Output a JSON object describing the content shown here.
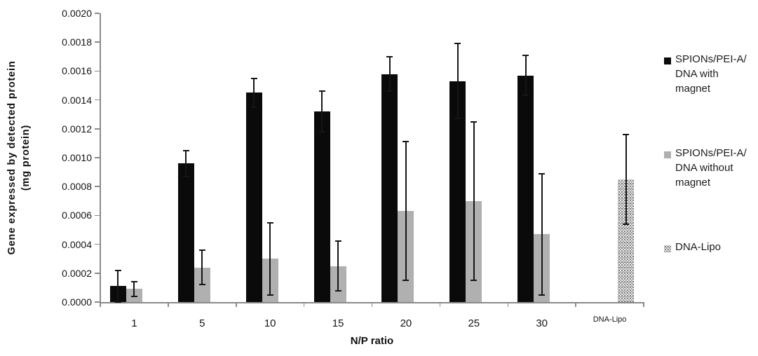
{
  "figure": {
    "y_axis_title_line1": "Gene expressed by detected protein",
    "y_axis_title_line2": "(mg protein)",
    "x_axis_title": "N/P ratio"
  },
  "colors": {
    "black_bar": "#0a0a0a",
    "gray_bar": "#b0b0b0",
    "pattern_gray": "#8f8f8f",
    "axis": "#8a8a8a",
    "error_bar": "#161616",
    "text": "#1a1a1a"
  },
  "legend": {
    "items": [
      {
        "swatch": "black",
        "lines": [
          "SPIONs/PEI-A/",
          "DNA with",
          "magnet"
        ]
      },
      {
        "swatch": "gray",
        "lines": [
          "SPIONs/PEI-A/",
          "DNA without",
          "magnet"
        ]
      },
      {
        "swatch": "pattern",
        "lines": [
          "DNA-Lipo"
        ]
      }
    ]
  },
  "chart_data": {
    "type": "bar",
    "title": "",
    "xlabel": "N/P ratio",
    "ylabel": "Gene expressed by detected protein (mg protein)",
    "categories": [
      "1",
      "5",
      "10",
      "15",
      "20",
      "25",
      "30",
      "DNA-Lipo"
    ],
    "series": [
      {
        "name": "SPIONs/PEI-A/DNA with magnet",
        "style": "solid-black",
        "values": [
          0.00011,
          0.00096,
          0.00145,
          0.00132,
          0.00158,
          0.00153,
          0.00157,
          null
        ],
        "errors": [
          0.00011,
          9e-05,
          0.0001,
          0.00014,
          0.00012,
          0.00026,
          0.00014,
          null
        ]
      },
      {
        "name": "SPIONs/PEI-A/DNA without magnet",
        "style": "solid-gray",
        "values": [
          9e-05,
          0.00024,
          0.0003,
          0.00025,
          0.00063,
          0.0007,
          0.00047,
          null
        ],
        "errors": [
          5e-05,
          0.00012,
          0.00025,
          0.00017,
          0.00048,
          0.00055,
          0.00042,
          null
        ]
      },
      {
        "name": "DNA-Lipo",
        "style": "pattern",
        "values": [
          null,
          null,
          null,
          null,
          null,
          null,
          null,
          0.00085
        ],
        "errors": [
          null,
          null,
          null,
          null,
          null,
          null,
          null,
          0.00031
        ]
      }
    ],
    "ylim": [
      0,
      0.002
    ],
    "ytick_step": 0.0002,
    "ytick_decimals": 4,
    "grid": false,
    "legend_position": "right",
    "error_bars": true
  }
}
